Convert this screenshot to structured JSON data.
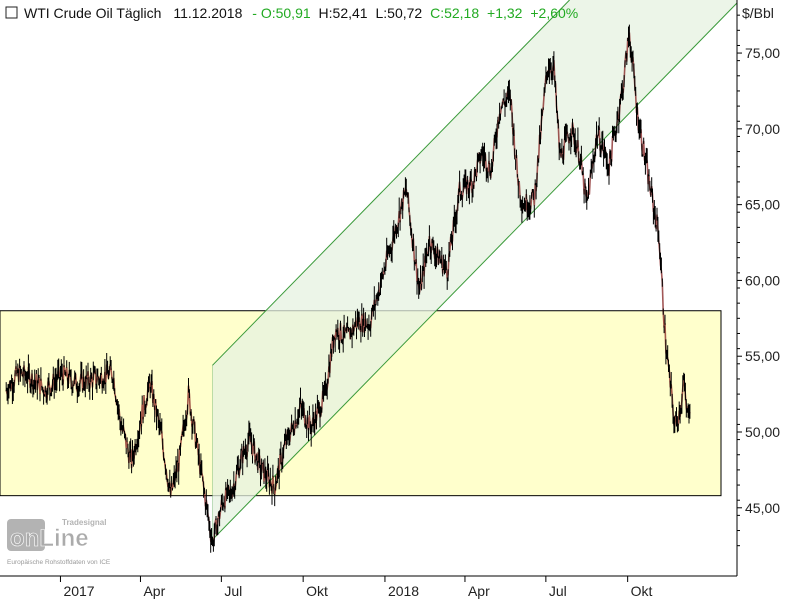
{
  "header": {
    "icon": "square-outline-icon",
    "instrument": "WTI Crude Oil Täglich",
    "date": "11.12.2018",
    "open": "O:50,91",
    "high": "H:52,41",
    "low": "L:50,72",
    "close": "C:52,18",
    "change": "+1,32",
    "change_pct": "+2,60%",
    "colors": {
      "text": "#111111",
      "positive": "#22aa22"
    }
  },
  "watermark": {
    "logo_text": "onLine",
    "brand_text": "Tradesignal",
    "source": "Europäische Rohstoffdaten von ICE"
  },
  "chart_data": {
    "type": "line",
    "title": "WTI Crude Oil Täglich",
    "ylabel": "$/Bbl",
    "ylim": [
      40.5,
      78.5
    ],
    "y_ticks": [
      "45,00",
      "50,00",
      "55,00",
      "60,00",
      "65,00",
      "70,00",
      "75,00"
    ],
    "x_ticks": [
      "2017",
      "Apr",
      "Jul",
      "Okt",
      "2018",
      "Apr",
      "Jul",
      "Okt"
    ],
    "x_tick_dates": [
      "2017-01-01",
      "2017-04-01",
      "2017-07-01",
      "2017-10-01",
      "2018-01-01",
      "2018-04-01",
      "2018-07-01",
      "2018-10-01"
    ],
    "xlim": [
      "2016-10-25",
      "2019-02-01"
    ],
    "grid": false,
    "series": [
      {
        "values_x": [
          "2016-11-01",
          "2016-11-15",
          "2016-12-01",
          "2016-12-15",
          "2017-01-03",
          "2017-01-20",
          "2017-02-10",
          "2017-03-01",
          "2017-03-10",
          "2017-03-22",
          "2017-04-03",
          "2017-04-12",
          "2017-04-25",
          "2017-05-05",
          "2017-05-15",
          "2017-05-25",
          "2017-06-05",
          "2017-06-21",
          "2017-07-03",
          "2017-07-12",
          "2017-07-25",
          "2017-08-02",
          "2017-08-15",
          "2017-08-30",
          "2017-09-10",
          "2017-09-28",
          "2017-10-10",
          "2017-10-25",
          "2017-11-06",
          "2017-11-20",
          "2017-12-01",
          "2017-12-15",
          "2018-01-04",
          "2018-01-25",
          "2018-02-09",
          "2018-02-20",
          "2018-03-01",
          "2018-03-12",
          "2018-03-26",
          "2018-04-10",
          "2018-04-20",
          "2018-05-01",
          "2018-05-10",
          "2018-05-22",
          "2018-05-30",
          "2018-06-05",
          "2018-06-18",
          "2018-07-03",
          "2018-07-10",
          "2018-07-17",
          "2018-07-30",
          "2018-08-08",
          "2018-08-16",
          "2018-08-28",
          "2018-09-10",
          "2018-09-25",
          "2018-10-03",
          "2018-10-12",
          "2018-10-25",
          "2018-11-05",
          "2018-11-13",
          "2018-11-23",
          "2018-11-29",
          "2018-12-03",
          "2018-12-07",
          "2018-12-11"
        ],
        "values_y": [
          52.8,
          53.9,
          53.5,
          52.8,
          53.8,
          53.2,
          53.5,
          53.9,
          50.5,
          48.0,
          51.3,
          53.2,
          49.6,
          45.8,
          48.2,
          52.5,
          48.5,
          42.7,
          45.5,
          46.0,
          48.5,
          49.5,
          47.5,
          46.4,
          49.0,
          51.6,
          50.3,
          52.3,
          56.8,
          56.2,
          57.3,
          57.2,
          61.5,
          66.0,
          59.2,
          62.7,
          61.6,
          60.7,
          65.9,
          66.5,
          68.4,
          67.3,
          71.4,
          72.2,
          67.0,
          65.0,
          65.4,
          74.2,
          74.0,
          68.1,
          70.0,
          68.3,
          64.9,
          69.8,
          67.5,
          72.5,
          76.4,
          71.0,
          66.5,
          63.1,
          55.7,
          50.4,
          51.5,
          53.3,
          51.0,
          52.2
        ],
        "color": "#000000"
      }
    ],
    "annotations": [
      {
        "type": "band",
        "y_range": [
          45.8,
          58.0
        ],
        "x_range": [
          "2016-10-25",
          "2019-01-14"
        ],
        "color": "#ffffcc",
        "border": "#000000"
      },
      {
        "type": "channel",
        "lower": [
          [
            "2017-06-21",
            42.9
          ],
          [
            "2019-02-01",
            78.3
          ]
        ],
        "upper_offset": 11.5,
        "x_start": "2017-06-21",
        "color": "#e6f2e0",
        "line": "#3a9a3a"
      }
    ]
  }
}
